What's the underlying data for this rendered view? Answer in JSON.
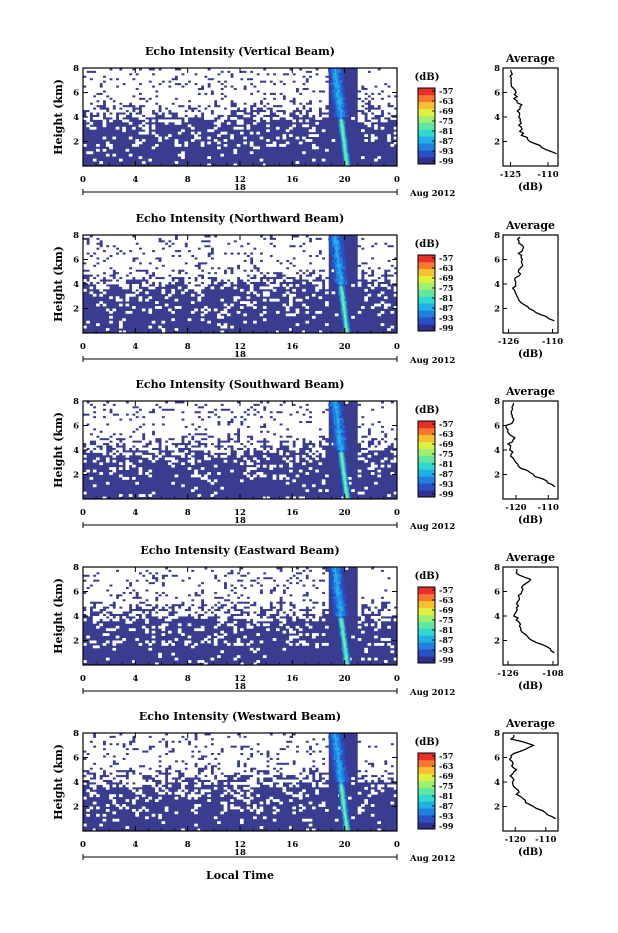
{
  "figure": {
    "date_label": "Aug 2012",
    "x_axis_label": "Local Time",
    "y_axis_label": "Height (km)",
    "colorbar_unit": "(dB)",
    "average_title": "Average",
    "average_unit": "(dB)"
  },
  "colors": {
    "background_echo": "#3a3d8f",
    "no_data": "#ffffff",
    "colormap": [
      "#303090",
      "#2a50c8",
      "#2080e0",
      "#20b0e8",
      "#30d8d0",
      "#60e8a0",
      "#a0f070",
      "#e0f040",
      "#f8c030",
      "#f87830",
      "#e83028"
    ]
  },
  "chart_data": [
    {
      "type": "heatmap",
      "title": "Echo Intensity (Vertical Beam)",
      "ylabel": "Height (km)",
      "x_ticks": [
        "0",
        "4",
        "8",
        "12",
        "16",
        "20",
        "0"
      ],
      "x_day_tick": "18",
      "y_ticks": [
        "2",
        "4",
        "6",
        "8"
      ],
      "xlim": [
        0,
        24
      ],
      "ylim": [
        0,
        8
      ],
      "colorbar_ticks": [
        "-57",
        "-63",
        "-69",
        "-75",
        "-81",
        "-87",
        "-93",
        "-99"
      ],
      "average": {
        "x_ticks": [
          "-125",
          "-110"
        ],
        "xlim": [
          -128,
          -106
        ],
        "ylim": [
          0,
          8
        ],
        "y_ticks": [
          "2",
          "4",
          "6",
          "8"
        ],
        "height_km": [
          1,
          1.5,
          2,
          2.5,
          3,
          3.5,
          4,
          4.5,
          5,
          5.5,
          6,
          6.5,
          7,
          7.5
        ],
        "mean_db": [
          -107,
          -112,
          -117,
          -120,
          -121,
          -121,
          -121,
          -122,
          -121,
          -123,
          -123,
          -124,
          -125,
          -125
        ]
      }
    },
    {
      "type": "heatmap",
      "title": "Echo Intensity (Northward Beam)",
      "ylabel": "Height (km)",
      "x_ticks": [
        "0",
        "4",
        "8",
        "12",
        "16",
        "20",
        "0"
      ],
      "x_day_tick": "18",
      "y_ticks": [
        "2",
        "4",
        "6",
        "8"
      ],
      "xlim": [
        0,
        24
      ],
      "ylim": [
        0,
        8
      ],
      "colorbar_ticks": [
        "-57",
        "-63",
        "-69",
        "-75",
        "-81",
        "-87",
        "-93",
        "-99"
      ],
      "average": {
        "x_ticks": [
          "-126",
          "-110"
        ],
        "xlim": [
          -128,
          -108
        ],
        "ylim": [
          0,
          8
        ],
        "y_ticks": [
          "2",
          "4",
          "6",
          "8"
        ],
        "height_km": [
          1,
          1.5,
          2,
          2.5,
          3,
          3.5,
          4,
          4.5,
          5,
          5.5,
          6,
          6.5,
          7,
          7.5
        ],
        "mean_db": [
          -109,
          -114,
          -119,
          -121,
          -123,
          -124,
          -124,
          -123,
          -122,
          -121,
          -121,
          -122,
          -121,
          -122
        ]
      }
    },
    {
      "type": "heatmap",
      "title": "Echo Intensity (Southward Beam)",
      "ylabel": "Height (km)",
      "x_ticks": [
        "0",
        "4",
        "8",
        "12",
        "16",
        "20",
        "0"
      ],
      "x_day_tick": "18",
      "y_ticks": [
        "2",
        "4",
        "6",
        "8"
      ],
      "xlim": [
        0,
        24
      ],
      "ylim": [
        0,
        8
      ],
      "colorbar_ticks": [
        "-57",
        "-63",
        "-69",
        "-75",
        "-81",
        "-87",
        "-93",
        "-99"
      ],
      "average": {
        "x_ticks": [
          "-120",
          "-110"
        ],
        "xlim": [
          -124,
          -107
        ],
        "ylim": [
          0,
          8
        ],
        "y_ticks": [
          "2",
          "4",
          "6",
          "8"
        ],
        "height_km": [
          1,
          1.5,
          2,
          2.5,
          3,
          3.5,
          4,
          4.5,
          5,
          5.5,
          6,
          6.5,
          7,
          7.5
        ],
        "mean_db": [
          -108,
          -111,
          -115,
          -118,
          -120,
          -121,
          -122,
          -122,
          -121,
          -122,
          -123,
          -120,
          -122,
          -121
        ]
      }
    },
    {
      "type": "heatmap",
      "title": "Echo Intensity (Eastward Beam)",
      "ylabel": "Height (km)",
      "x_ticks": [
        "0",
        "4",
        "8",
        "12",
        "16",
        "20",
        "0"
      ],
      "x_day_tick": "18",
      "y_ticks": [
        "2",
        "4",
        "6",
        "8"
      ],
      "xlim": [
        0,
        24
      ],
      "ylim": [
        0,
        8
      ],
      "colorbar_ticks": [
        "-57",
        "-63",
        "-69",
        "-75",
        "-81",
        "-87",
        "-93",
        "-99"
      ],
      "average": {
        "x_ticks": [
          "-126",
          "-108"
        ],
        "xlim": [
          -128,
          -106
        ],
        "ylim": [
          0,
          8
        ],
        "y_ticks": [
          "2",
          "4",
          "6",
          "8"
        ],
        "height_km": [
          1,
          1.5,
          2,
          2.5,
          3,
          3.5,
          4,
          4.5,
          5,
          5.5,
          6,
          6.5,
          7,
          7.5
        ],
        "mean_db": [
          -107,
          -111,
          -116,
          -119,
          -121,
          -122,
          -123,
          -123,
          -122,
          -122,
          -121,
          -120,
          -117,
          -123
        ]
      }
    },
    {
      "type": "heatmap",
      "title": "Echo Intensity (Westward Beam)",
      "ylabel": "Height (km)",
      "x_ticks": [
        "0",
        "4",
        "8",
        "12",
        "16",
        "20",
        "0"
      ],
      "x_day_tick": "18",
      "y_ticks": [
        "2",
        "4",
        "6",
        "8"
      ],
      "xlim": [
        0,
        24
      ],
      "ylim": [
        0,
        8
      ],
      "colorbar_ticks": [
        "-57",
        "-63",
        "-69",
        "-75",
        "-81",
        "-87",
        "-93",
        "-99"
      ],
      "average": {
        "x_ticks": [
          "-120",
          "-110"
        ],
        "xlim": [
          -124,
          -106
        ],
        "ylim": [
          0,
          8
        ],
        "y_ticks": [
          "2",
          "4",
          "6",
          "8"
        ],
        "height_km": [
          1,
          1.5,
          2,
          2.5,
          3,
          3.5,
          4,
          4.5,
          5,
          5.5,
          6,
          6.5,
          7,
          7.5
        ],
        "mean_db": [
          -107,
          -110,
          -114,
          -117,
          -119,
          -120,
          -121,
          -121,
          -120,
          -121,
          -122,
          -119,
          -114,
          -121
        ]
      }
    }
  ]
}
